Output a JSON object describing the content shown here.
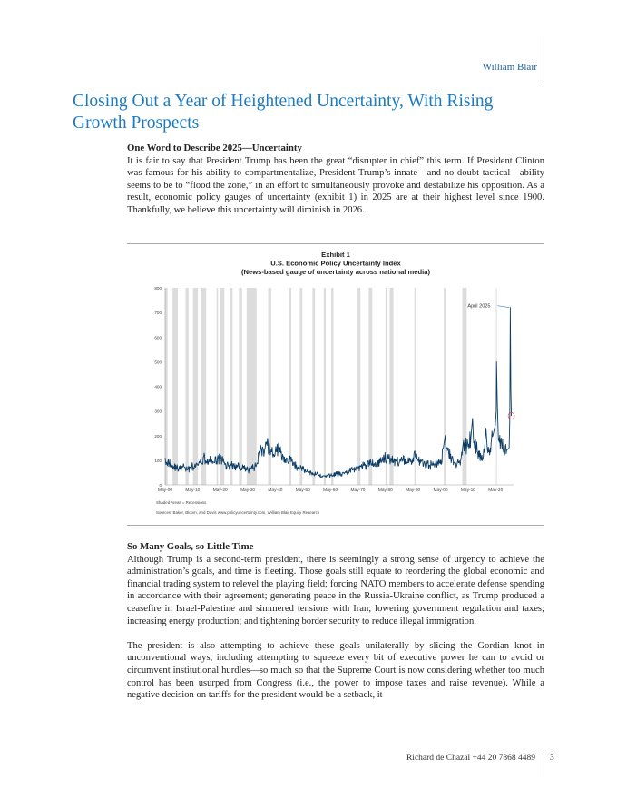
{
  "header": {
    "brand": "William Blair"
  },
  "title": "Closing Out a Year of Heightened Uncertainty, With Rising Growth Prospects",
  "section1": {
    "heading": "One Word to Describe 2025—Uncertainty",
    "paragraph": "It is fair to say that President Trump has been the great “disrupter in chief” this term. If President Clinton was famous for his ability to compartmentalize, President Trump’s innate—and no doubt tactical—ability seems to be to “flood the zone,” in an effort to simultaneously provoke and destabilize his opposition. As a result, economic policy gauges of uncertainty (exhibit 1) in 2025 are at their highest level since 1900. Thankfully, we believe this uncertainty will diminish in 2026."
  },
  "chart_data": {
    "type": "line",
    "title": [
      "Exhibit 1",
      "U.S. Economic Policy Uncertainty Index",
      "(News-based gauge of uncertainty across national media)"
    ],
    "xlabel": "",
    "ylabel": "",
    "xlim": [
      1900,
      2026.5
    ],
    "ylim": [
      0,
      800
    ],
    "yticks": [
      0,
      100,
      200,
      300,
      400,
      500,
      600,
      700,
      800
    ],
    "xticks": [
      {
        "x": 1900,
        "label": "May-00"
      },
      {
        "x": 1910,
        "label": "May-10"
      },
      {
        "x": 1920,
        "label": "May-20"
      },
      {
        "x": 1930,
        "label": "May-30"
      },
      {
        "x": 1940,
        "label": "May-40"
      },
      {
        "x": 1950,
        "label": "May-50"
      },
      {
        "x": 1960,
        "label": "May-60"
      },
      {
        "x": 1970,
        "label": "May-70"
      },
      {
        "x": 1980,
        "label": "May-80"
      },
      {
        "x": 1990,
        "label": "May-90"
      },
      {
        "x": 2000,
        "label": "May-00"
      },
      {
        "x": 2010,
        "label": "May-10"
      },
      {
        "x": 2020,
        "label": "May-20"
      }
    ],
    "grid": false,
    "line_color": "#0b3d66",
    "shade_color": "#dcdcdc",
    "recessions": [
      [
        1899.5,
        1900.9
      ],
      [
        1902.7,
        1904.6
      ],
      [
        1907.4,
        1908.5
      ],
      [
        1910.1,
        1911.9
      ],
      [
        1913.0,
        1914.9
      ],
      [
        1918.7,
        1919.2
      ],
      [
        1920.0,
        1921.5
      ],
      [
        1923.4,
        1924.5
      ],
      [
        1926.8,
        1927.9
      ],
      [
        1929.6,
        1933.2
      ],
      [
        1937.4,
        1938.5
      ],
      [
        1945.1,
        1945.8
      ],
      [
        1948.9,
        1949.8
      ],
      [
        1953.5,
        1954.4
      ],
      [
        1957.6,
        1958.3
      ],
      [
        1960.3,
        1961.1
      ],
      [
        1969.9,
        1970.9
      ],
      [
        1973.9,
        1975.2
      ],
      [
        1980.0,
        1980.5
      ],
      [
        1981.5,
        1982.9
      ],
      [
        1990.5,
        1991.2
      ],
      [
        2001.2,
        2001.9
      ],
      [
        2007.9,
        2009.5
      ],
      [
        2020.1,
        2020.4
      ]
    ],
    "series": [
      {
        "x": [
          1900,
          1901,
          1902,
          1903,
          1904,
          1905,
          1906,
          1907,
          1908,
          1909,
          1910,
          1911,
          1912,
          1913,
          1914,
          1915,
          1916,
          1917,
          1918,
          1919,
          1920,
          1921,
          1922,
          1923,
          1924,
          1925,
          1926,
          1927,
          1928,
          1929,
          1930,
          1931,
          1932,
          1933,
          1934,
          1935,
          1936,
          1937,
          1938,
          1939,
          1940,
          1941,
          1942,
          1943,
          1944,
          1945,
          1946,
          1947,
          1948,
          1949,
          1950,
          1951,
          1952,
          1953,
          1954,
          1955,
          1956,
          1957,
          1958,
          1959,
          1960,
          1961,
          1962,
          1963,
          1964,
          1965,
          1966,
          1967,
          1968,
          1969,
          1970,
          1971,
          1972,
          1973,
          1974,
          1975,
          1976,
          1977,
          1978,
          1979,
          1980,
          1981,
          1982,
          1983,
          1984,
          1985,
          1986,
          1987,
          1988,
          1989,
          1990,
          1991,
          1992,
          1993,
          1994,
          1995,
          1996,
          1997,
          1998,
          1999,
          2000,
          2001,
          2001.7,
          2002,
          2003,
          2004,
          2005,
          2006,
          2007,
          2008,
          2009,
          2010,
          2011,
          2011.6,
          2012,
          2013,
          2014,
          2015,
          2016,
          2016.5,
          2017,
          2018,
          2019,
          2019.8,
          2020.2,
          2020.3,
          2020.6,
          2021,
          2022,
          2023,
          2024,
          2024.9,
          2025.1,
          2025.3,
          2025.5,
          2025.7
        ],
        "y": [
          110,
          95,
          85,
          75,
          70,
          65,
          68,
          72,
          60,
          70,
          75,
          72,
          80,
          90,
          115,
          95,
          95,
          100,
          90,
          110,
          105,
          95,
          80,
          75,
          80,
          75,
          70,
          75,
          70,
          65,
          60,
          65,
          70,
          75,
          130,
          145,
          130,
          160,
          140,
          125,
          135,
          150,
          130,
          115,
          110,
          100,
          95,
          80,
          70,
          65,
          65,
          55,
          55,
          50,
          45,
          45,
          38,
          35,
          35,
          35,
          38,
          40,
          45,
          45,
          42,
          45,
          50,
          55,
          60,
          60,
          70,
          75,
          80,
          80,
          90,
          85,
          85,
          85,
          90,
          100,
          110,
          105,
          110,
          100,
          95,
          90,
          95,
          105,
          90,
          95,
          110,
          120,
          95,
          95,
          90,
          85,
          80,
          80,
          85,
          90,
          85,
          150,
          200,
          130,
          125,
          100,
          90,
          85,
          90,
          150,
          160,
          155,
          190,
          270,
          170,
          150,
          115,
          120,
          150,
          230,
          140,
          150,
          200,
          240,
          300,
          500,
          330,
          180,
          190,
          140,
          140,
          150,
          260,
          720,
          380,
          280
        ]
      }
    ],
    "annotations": [
      {
        "text": "April 2025",
        "x": 2025.3,
        "y": 720
      }
    ],
    "highlight_point": {
      "x": 2025.7,
      "y": 280
    },
    "notes": [
      "Shaded Areas = Recessions",
      "Sources: Baker, Bloom, and Davis www.policyuncertainty.com, William Blair Equity Research"
    ]
  },
  "section2": {
    "heading": "So Many Goals, so Little Time",
    "paragraphs": [
      "Although Trump is a second-term president, there is seemingly a strong sense of urgency to achieve the administration’s goals, and time is fleeting. Those goals still equate to reordering the global economic and financial trading system to relevel the playing field; forcing NATO members to accelerate defense spending in accordance with their agreement; generating peace in the Russia-Ukraine conflict, as Trump produced a ceasefire in Israel-Palestine and simmered tensions with Iran; lowering government regulation and taxes; increasing energy production; and tightening border security to reduce illegal immigration.",
      "The president is also attempting to achieve these goals unilaterally by slicing the Gordian knot in unconventional ways, including attempting to squeeze every bit of executive power he can to avoid or circumvent institutional hurdles—so much so that the Supreme Court is now considering whether too much control has been usurped from Congress (i.e., the power to impose taxes and raise revenue). While a negative decision on tariffs for the president would be a setback, it"
    ]
  },
  "footer": {
    "author": "Richard de Chazal +44 20 7868 4489",
    "page": "3"
  }
}
